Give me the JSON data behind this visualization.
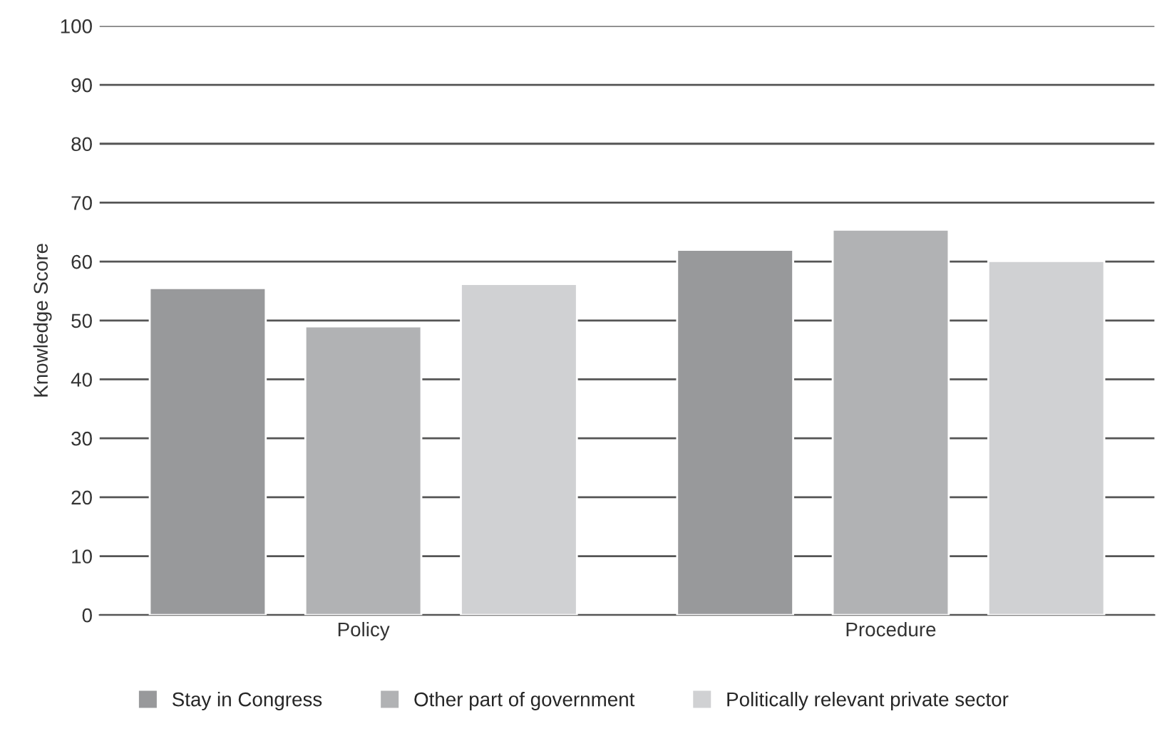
{
  "chart_data": {
    "type": "bar",
    "ylabel": "Knowledge Score",
    "categories": [
      "Policy",
      "Procedure"
    ],
    "series": [
      {
        "name": "Stay in Congress",
        "color": "#98999b",
        "values": [
          55.5,
          62.0
        ]
      },
      {
        "name": "Other part of government",
        "color": "#b1b2b4",
        "values": [
          49.0,
          65.4
        ]
      },
      {
        "name": "Politically relevant private sector",
        "color": "#d0d1d3",
        "values": [
          56.2,
          60.1
        ]
      }
    ],
    "ylim": [
      0,
      100
    ],
    "yticks": [
      0,
      10,
      20,
      30,
      40,
      50,
      60,
      70,
      80,
      90,
      100
    ],
    "grid": "y",
    "legend": "bottom"
  }
}
